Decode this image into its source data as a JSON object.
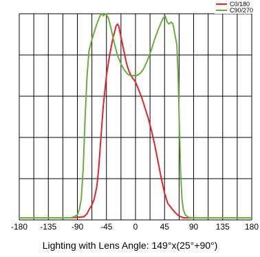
{
  "chart_data": {
    "type": "line",
    "title": "",
    "xlabel": "",
    "ylabel": "",
    "xlim": [
      -180,
      180
    ],
    "ylim": [
      0,
      1
    ],
    "x_ticks": [
      "-180",
      "-135",
      "-90",
      "-45",
      "0",
      "45",
      "90",
      "135",
      "180"
    ],
    "x_gridlines": [
      -180,
      -157.5,
      -135,
      -112.5,
      -90,
      -67.5,
      -45,
      -22.5,
      0,
      22.5,
      45,
      67.5,
      90,
      112.5,
      135,
      157.5,
      180
    ],
    "y_gridlines": [
      0,
      0.2,
      0.4,
      0.6,
      0.8,
      1.0
    ],
    "grid": true,
    "legend_position": "top-right",
    "caption": "Lighting with Lens Angle: 149°x(25°+90°)",
    "series": [
      {
        "name": "C0/180",
        "color": "#e8202a",
        "points": [
          [
            -180,
            0.01
          ],
          [
            -100,
            0.01
          ],
          [
            -80,
            0.015
          ],
          [
            -75,
            0.03
          ],
          [
            -72,
            0.05
          ],
          [
            -68,
            0.07
          ],
          [
            -64,
            0.1
          ],
          [
            -60,
            0.16
          ],
          [
            -57,
            0.25
          ],
          [
            -54,
            0.38
          ],
          [
            -50,
            0.55
          ],
          [
            -45,
            0.7
          ],
          [
            -40,
            0.8
          ],
          [
            -35,
            0.88
          ],
          [
            -30,
            0.94
          ],
          [
            -28,
            0.95
          ],
          [
            -26,
            0.94
          ],
          [
            -22,
            0.88
          ],
          [
            -18,
            0.82
          ],
          [
            -14,
            0.76
          ],
          [
            -10,
            0.72
          ],
          [
            -5,
            0.69
          ],
          [
            0,
            0.67
          ],
          [
            5,
            0.63
          ],
          [
            10,
            0.59
          ],
          [
            15,
            0.54
          ],
          [
            20,
            0.49
          ],
          [
            25,
            0.43
          ],
          [
            30,
            0.36
          ],
          [
            35,
            0.28
          ],
          [
            40,
            0.2
          ],
          [
            45,
            0.13
          ],
          [
            50,
            0.08
          ],
          [
            55,
            0.06
          ],
          [
            60,
            0.04
          ],
          [
            65,
            0.025
          ],
          [
            70,
            0.015
          ],
          [
            75,
            0.01
          ],
          [
            180,
            0.01
          ]
        ]
      },
      {
        "name": "C90/270",
        "color": "#66b032",
        "points": [
          [
            -180,
            0.01
          ],
          [
            -100,
            0.01
          ],
          [
            -95,
            0.015
          ],
          [
            -90,
            0.025
          ],
          [
            -87,
            0.05
          ],
          [
            -84,
            0.1
          ],
          [
            -81,
            0.25
          ],
          [
            -78,
            0.5
          ],
          [
            -75,
            0.7
          ],
          [
            -72,
            0.82
          ],
          [
            -68,
            0.87
          ],
          [
            -64,
            0.91
          ],
          [
            -60,
            0.95
          ],
          [
            -55,
            0.99
          ],
          [
            -52,
            1.0
          ],
          [
            -50,
            0.99
          ],
          [
            -46,
            1.0
          ],
          [
            -42,
            0.98
          ],
          [
            -38,
            0.93
          ],
          [
            -33,
            0.86
          ],
          [
            -28,
            0.8
          ],
          [
            -23,
            0.76
          ],
          [
            -18,
            0.73
          ],
          [
            -13,
            0.71
          ],
          [
            -8,
            0.7
          ],
          [
            -3,
            0.7
          ],
          [
            2,
            0.7
          ],
          [
            7,
            0.71
          ],
          [
            12,
            0.73
          ],
          [
            18,
            0.77
          ],
          [
            24,
            0.82
          ],
          [
            30,
            0.88
          ],
          [
            36,
            0.93
          ],
          [
            40,
            0.96
          ],
          [
            43,
            0.98
          ],
          [
            46,
            0.99
          ],
          [
            49,
            0.96
          ],
          [
            52,
            0.95
          ],
          [
            55,
            0.96
          ],
          [
            58,
            0.95
          ],
          [
            61,
            0.9
          ],
          [
            64,
            0.85
          ],
          [
            66,
            0.7
          ],
          [
            68,
            0.45
          ],
          [
            70,
            0.22
          ],
          [
            72,
            0.1
          ],
          [
            74,
            0.05
          ],
          [
            77,
            0.025
          ],
          [
            82,
            0.012
          ],
          [
            90,
            0.01
          ],
          [
            180,
            0.01
          ]
        ]
      }
    ]
  }
}
